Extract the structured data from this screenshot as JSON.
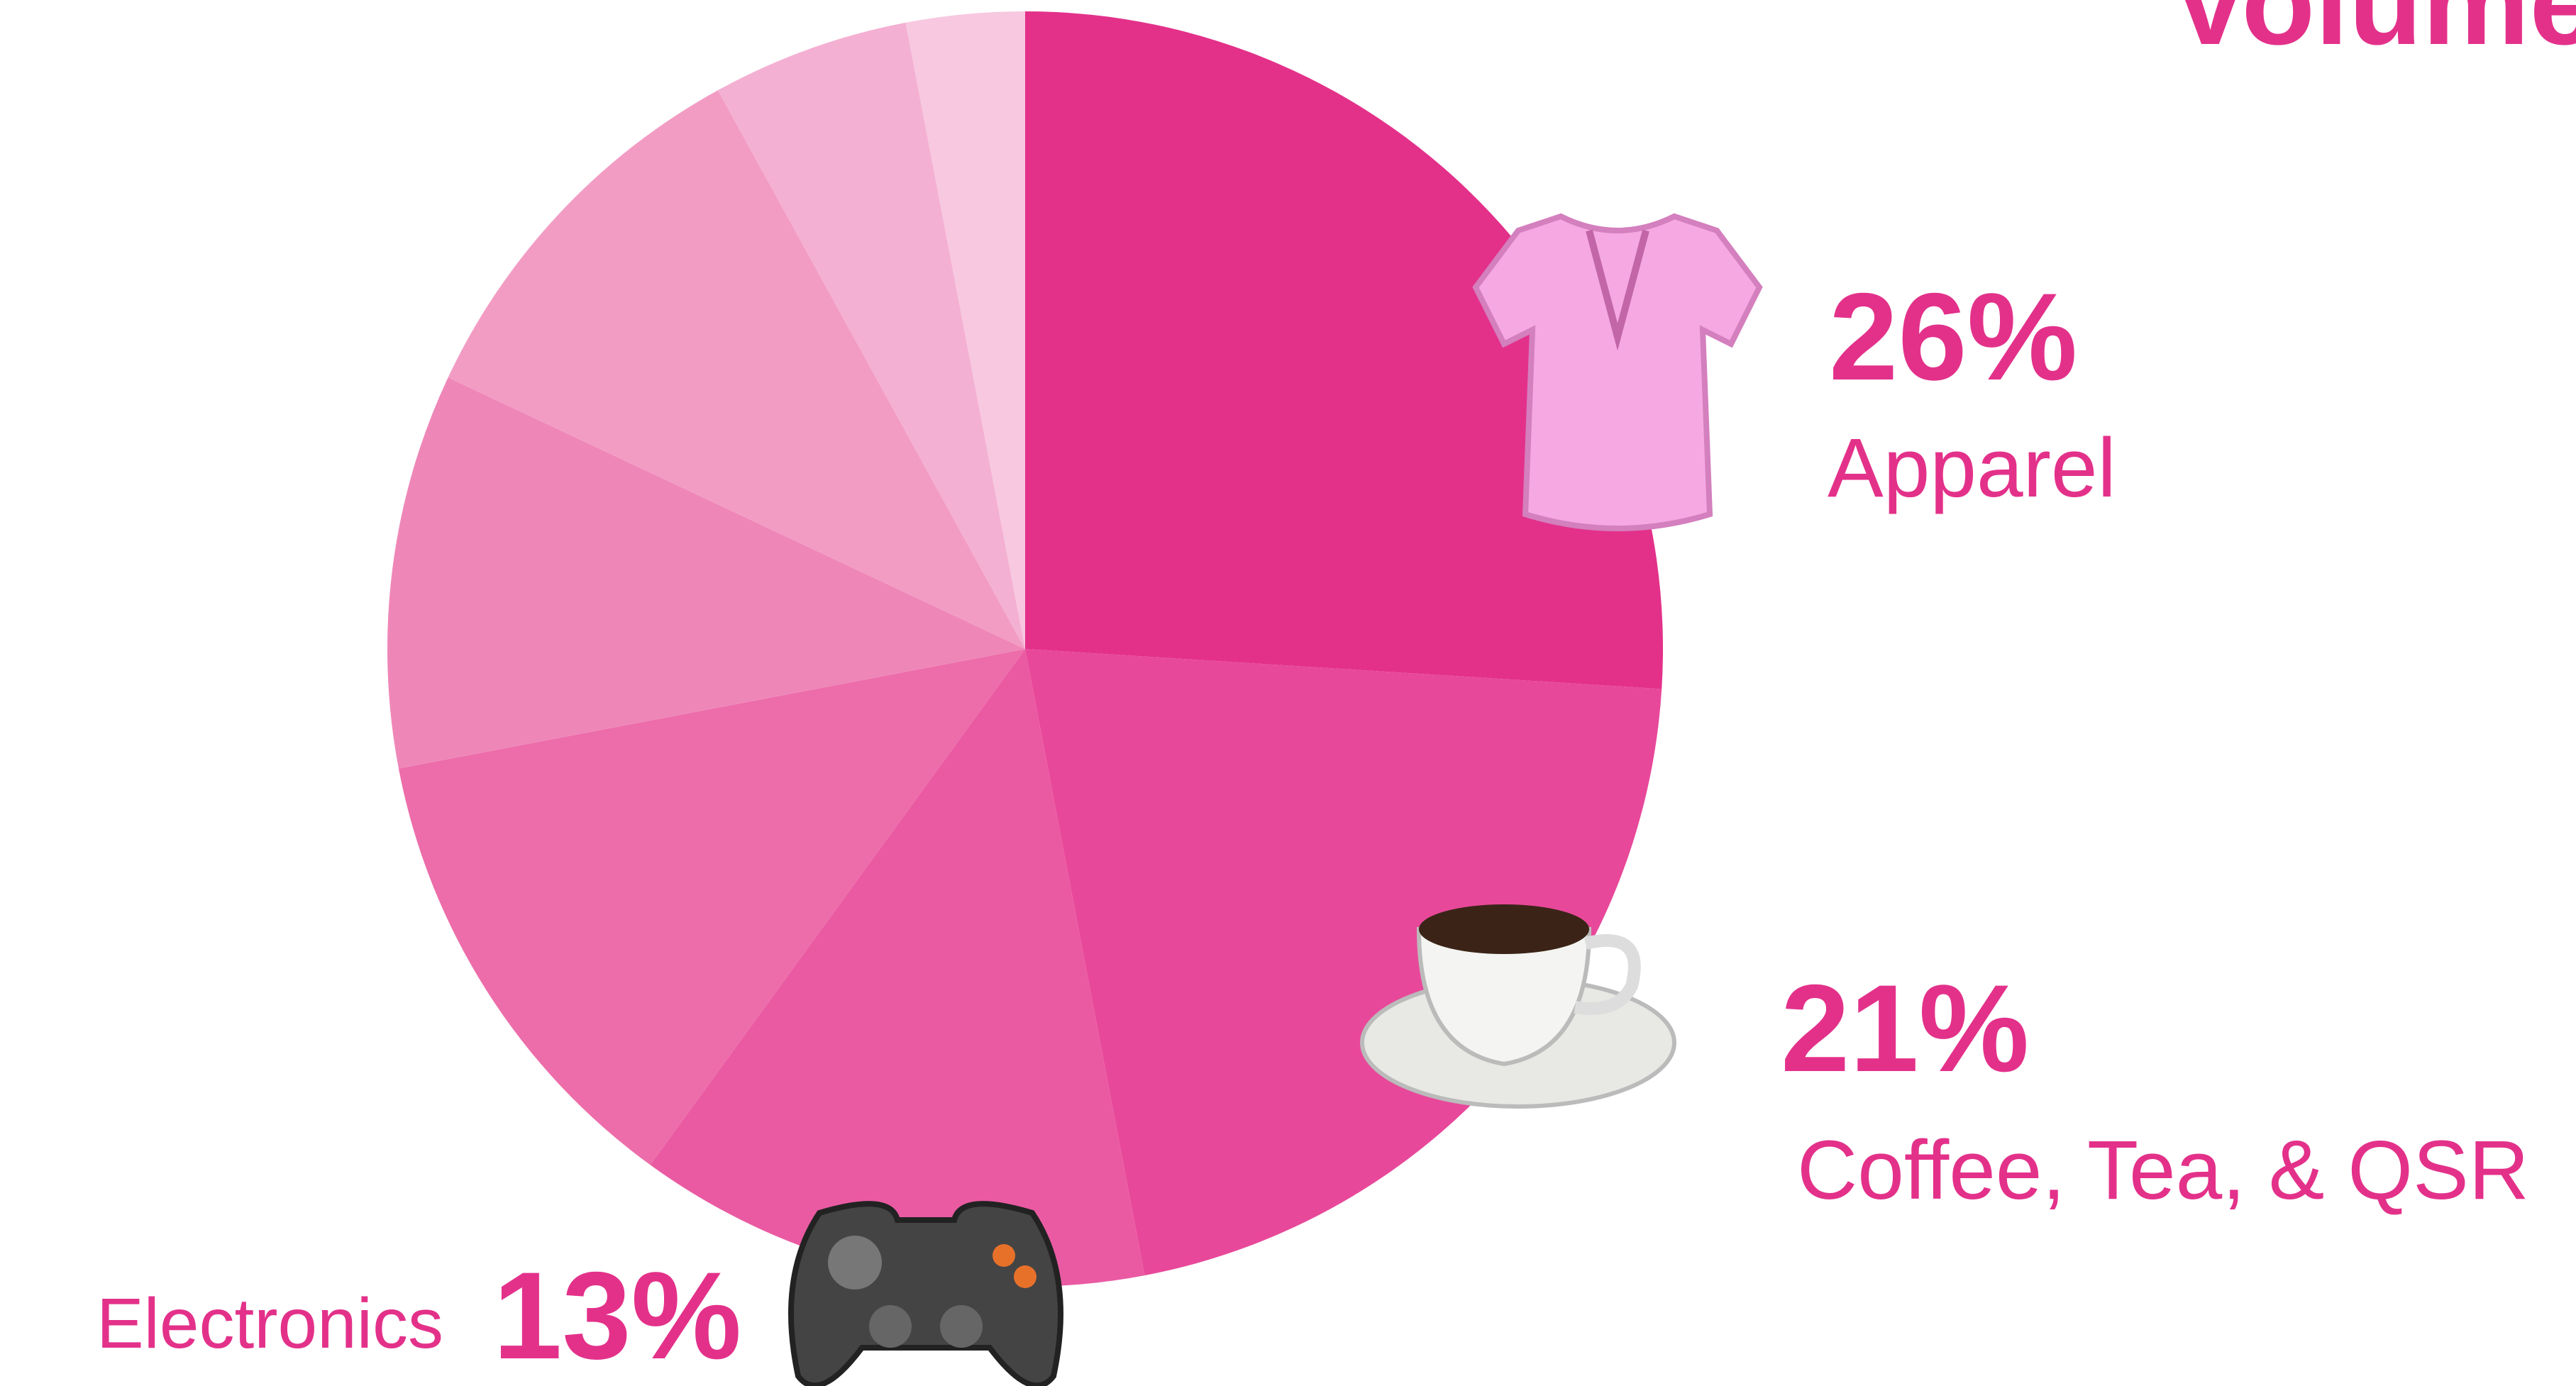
{
  "chart_data": {
    "type": "pie",
    "title": "Volume",
    "categories": [
      "Apparel",
      "Coffee, Tea, & QSR",
      "Electronics",
      null,
      null,
      null,
      null,
      null
    ],
    "values": [
      26,
      21,
      13,
      12,
      10,
      10,
      5,
      3
    ],
    "value_labels": [
      "26%",
      "21%",
      "13%",
      null,
      null,
      null,
      null,
      null
    ],
    "colors": [
      "#e3318a",
      "#e8489a",
      "#ea5aa2",
      "#ec6daa",
      "#ef86b8",
      "#f29cc4",
      "#f4b0d2",
      "#f7c8e0"
    ],
    "label_color": "#e3318a"
  }
}
